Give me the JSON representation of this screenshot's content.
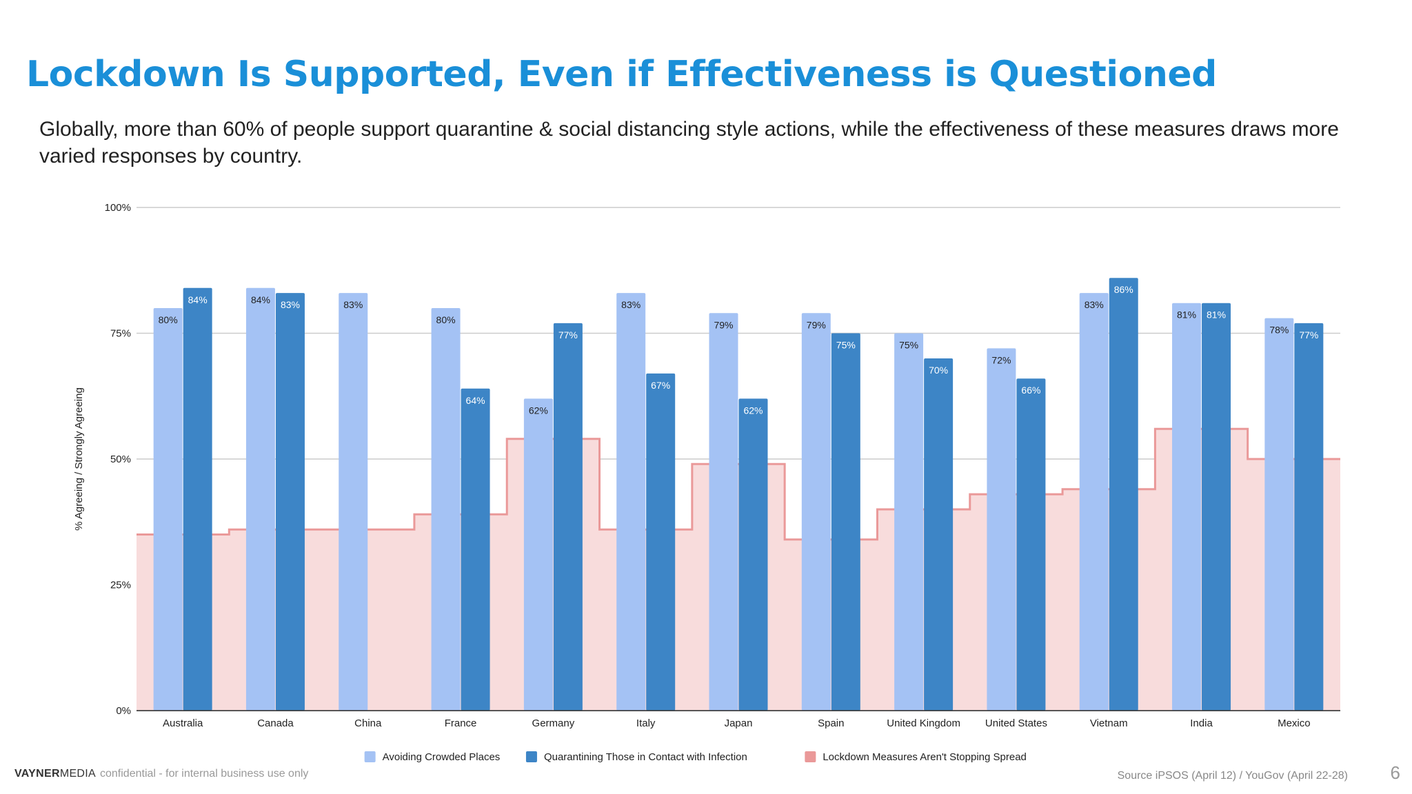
{
  "slide": {
    "title": "Lockdown Is Supported, Even if Effectiveness is Questioned",
    "subtitle": "Globally, more than 60% of people support quarantine & social distancing style actions, while the effectiveness of these measures draws more varied responses by country.",
    "footer_brand_bold": "VAYNER",
    "footer_brand_regular": "MEDIA",
    "footer_confidential": "confidential - for internal business use only",
    "source": "Source iPSOS  (April 12) / YouGov (April 22-28)",
    "page_number": "6"
  },
  "chart_data": {
    "type": "bar",
    "ylabel": "% Agreeing / Strongly Agreeing",
    "ylim": [
      0,
      100
    ],
    "yticks": [
      "0%",
      "25%",
      "50%",
      "75%",
      "100%"
    ],
    "grid": true,
    "legend_position": "bottom",
    "categories": [
      "Australia",
      "Canada",
      "China",
      "France",
      "Germany",
      "Italy",
      "Japan",
      "Spain",
      "United Kingdom",
      "United States",
      "Vietnam",
      "India",
      "Mexico"
    ],
    "series": [
      {
        "name": "Avoiding Crowded Places",
        "kind": "bar",
        "color": "#a4c2f4",
        "values": [
          80,
          84,
          83,
          80,
          62,
          83,
          79,
          79,
          75,
          72,
          83,
          81,
          78
        ]
      },
      {
        "name": "Quarantining Those in Contact with Infection",
        "kind": "bar",
        "color": "#3d85c6",
        "values": [
          84,
          83,
          null,
          64,
          77,
          67,
          62,
          75,
          70,
          66,
          86,
          81,
          77
        ]
      },
      {
        "name": "Lockdown Measures Aren't Stopping Spread",
        "kind": "stepped-area",
        "color": "#ea9999",
        "fill": "#f8dcdc",
        "values": [
          35,
          36,
          36,
          39,
          54,
          36,
          49,
          34,
          40,
          43,
          44,
          56,
          50
        ]
      }
    ]
  }
}
